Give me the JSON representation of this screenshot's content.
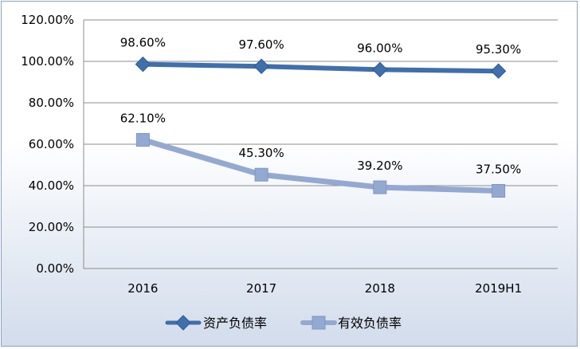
{
  "chart_data": {
    "type": "line",
    "categories": [
      "2016",
      "2017",
      "2018",
      "2019H1"
    ],
    "series": [
      {
        "name": "资产负债率",
        "values": [
          98.6,
          97.6,
          96.0,
          95.3
        ],
        "labels": [
          "98.60%",
          "97.60%",
          "96.00%",
          "95.30%"
        ],
        "marker": "diamond",
        "color": "#3f6fad"
      },
      {
        "name": "有效负债率",
        "values": [
          62.1,
          45.3,
          39.2,
          37.5
        ],
        "labels": [
          "62.10%",
          "45.30%",
          "39.20%",
          "37.50%"
        ],
        "marker": "square",
        "color": "#94a9d1"
      }
    ],
    "y_ticks": [
      "0.00%",
      "20.00%",
      "40.00%",
      "60.00%",
      "80.00%",
      "100.00%",
      "120.00%"
    ],
    "ylim": [
      0,
      120
    ],
    "y_step": 20,
    "grid": true,
    "legend": "bottom"
  }
}
